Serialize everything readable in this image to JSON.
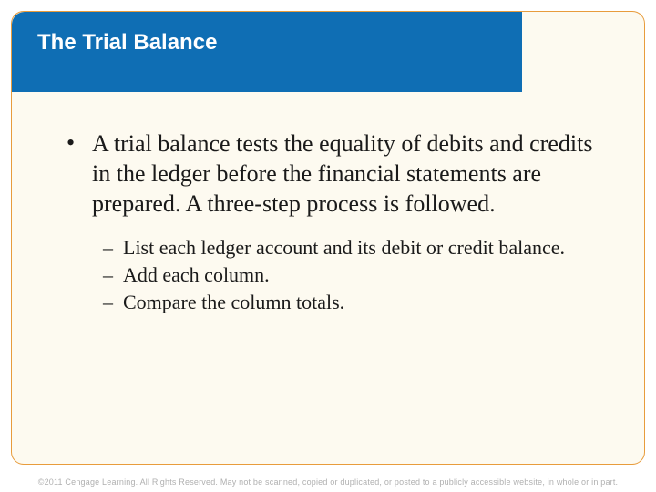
{
  "colors": {
    "title_bar_bg": "#0f6eb4",
    "title_text": "#ffffff",
    "frame_border": "#e89c3c",
    "frame_bg": "#fdfaf0",
    "body_text": "#1a1a1a",
    "footer_text": "#b0b0b0"
  },
  "typography": {
    "title_fontsize": 24,
    "body_fontsize": 26,
    "sub_fontsize": 22,
    "footer_fontsize": 9,
    "title_font": "Arial",
    "body_font": "Times New Roman"
  },
  "title": "The Trial Balance",
  "main_bullet": "A trial balance tests the equality of debits and credits in the ledger before the financial statements are prepared. A three-step process is followed.",
  "sub_bullets": [
    "List each ledger account and its debit or credit balance.",
    "Add each column.",
    "Compare the column totals."
  ],
  "footer": "©2011 Cengage Learning. All Rights Reserved. May not be scanned, copied or duplicated, or posted to a publicly accessible website, in whole or in part."
}
